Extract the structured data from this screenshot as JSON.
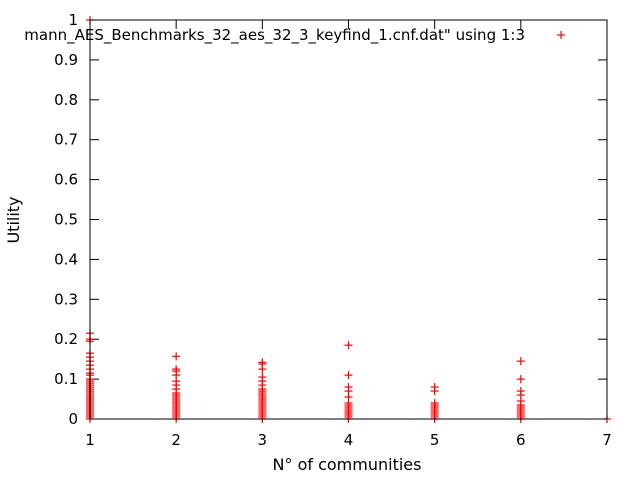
{
  "chart_data": {
    "type": "scatter",
    "xlabel": "N° of communities",
    "ylabel": "Utility",
    "xlim": [
      1,
      7
    ],
    "ylim": [
      0,
      1
    ],
    "x_ticks": [
      "1",
      "2",
      "3",
      "4",
      "5",
      "6",
      "7"
    ],
    "y_ticks": [
      "0",
      "0.1",
      "0.2",
      "0.3",
      "0.4",
      "0.5",
      "0.6",
      "0.7",
      "0.8",
      "0.9",
      "1"
    ],
    "grid": false,
    "legend_position": "top-right",
    "marker_color": "#ff0000",
    "series": [
      {
        "name": "mann_AES_Benchmarks_32_aes_32_3_keyfind_1.cnf.dat\" using 1:3",
        "points": [
          [
            1,
            1.0
          ],
          [
            1,
            0.215
          ],
          [
            1,
            0.2
          ],
          [
            1,
            0.195
          ],
          [
            1,
            0.165
          ],
          [
            1,
            0.155
          ],
          [
            1,
            0.145
          ],
          [
            1,
            0.135
          ],
          [
            1,
            0.125
          ],
          [
            1,
            0.115
          ],
          [
            1,
            0.11
          ],
          [
            1,
            0.1
          ],
          [
            1,
            0.095
          ],
          [
            1,
            0.09
          ],
          [
            1,
            0.085
          ],
          [
            1,
            0.08
          ],
          [
            1,
            0.075
          ],
          [
            1,
            0.07
          ],
          [
            1,
            0.065
          ],
          [
            1,
            0.06
          ],
          [
            1,
            0.055
          ],
          [
            1,
            0.05
          ],
          [
            1,
            0.045
          ],
          [
            1,
            0.04
          ],
          [
            1,
            0.035
          ],
          [
            1,
            0.03
          ],
          [
            1,
            0.025
          ],
          [
            1,
            0.02
          ],
          [
            1,
            0.015
          ],
          [
            1,
            0.01
          ],
          [
            1,
            0.005
          ],
          [
            1,
            0.0
          ],
          [
            2,
            0.157
          ],
          [
            2,
            0.125
          ],
          [
            2,
            0.12
          ],
          [
            2,
            0.11
          ],
          [
            2,
            0.095
          ],
          [
            2,
            0.085
          ],
          [
            2,
            0.075
          ],
          [
            2,
            0.065
          ],
          [
            2,
            0.06
          ],
          [
            2,
            0.055
          ],
          [
            2,
            0.05
          ],
          [
            2,
            0.045
          ],
          [
            2,
            0.04
          ],
          [
            2,
            0.035
          ],
          [
            2,
            0.03
          ],
          [
            2,
            0.025
          ],
          [
            2,
            0.02
          ],
          [
            2,
            0.015
          ],
          [
            2,
            0.01
          ],
          [
            2,
            0.005
          ],
          [
            2,
            0.0
          ],
          [
            3,
            0.142
          ],
          [
            3,
            0.138
          ],
          [
            3,
            0.125
          ],
          [
            3,
            0.105
          ],
          [
            3,
            0.095
          ],
          [
            3,
            0.085
          ],
          [
            3,
            0.075
          ],
          [
            3,
            0.07
          ],
          [
            3,
            0.065
          ],
          [
            3,
            0.06
          ],
          [
            3,
            0.055
          ],
          [
            3,
            0.05
          ],
          [
            3,
            0.045
          ],
          [
            3,
            0.04
          ],
          [
            3,
            0.035
          ],
          [
            3,
            0.03
          ],
          [
            3,
            0.025
          ],
          [
            3,
            0.02
          ],
          [
            3,
            0.015
          ],
          [
            3,
            0.01
          ],
          [
            3,
            0.005
          ],
          [
            3,
            0.0
          ],
          [
            4,
            0.185
          ],
          [
            4,
            0.11
          ],
          [
            4,
            0.08
          ],
          [
            4,
            0.07
          ],
          [
            4,
            0.055
          ],
          [
            4,
            0.04
          ],
          [
            4,
            0.035
          ],
          [
            4,
            0.03
          ],
          [
            4,
            0.025
          ],
          [
            4,
            0.02
          ],
          [
            4,
            0.015
          ],
          [
            4,
            0.01
          ],
          [
            4,
            0.005
          ],
          [
            4,
            0.0
          ],
          [
            5,
            0.08
          ],
          [
            5,
            0.07
          ],
          [
            5,
            0.04
          ],
          [
            5,
            0.035
          ],
          [
            5,
            0.03
          ],
          [
            5,
            0.025
          ],
          [
            5,
            0.02
          ],
          [
            5,
            0.015
          ],
          [
            5,
            0.01
          ],
          [
            5,
            0.005
          ],
          [
            5,
            0.0
          ],
          [
            6,
            0.145
          ],
          [
            6,
            0.1
          ],
          [
            6,
            0.07
          ],
          [
            6,
            0.06
          ],
          [
            6,
            0.045
          ],
          [
            6,
            0.035
          ],
          [
            6,
            0.03
          ],
          [
            6,
            0.025
          ],
          [
            6,
            0.02
          ],
          [
            6,
            0.015
          ],
          [
            6,
            0.01
          ],
          [
            6,
            0.005
          ],
          [
            6,
            0.0
          ],
          [
            7,
            0.0
          ]
        ]
      }
    ]
  }
}
